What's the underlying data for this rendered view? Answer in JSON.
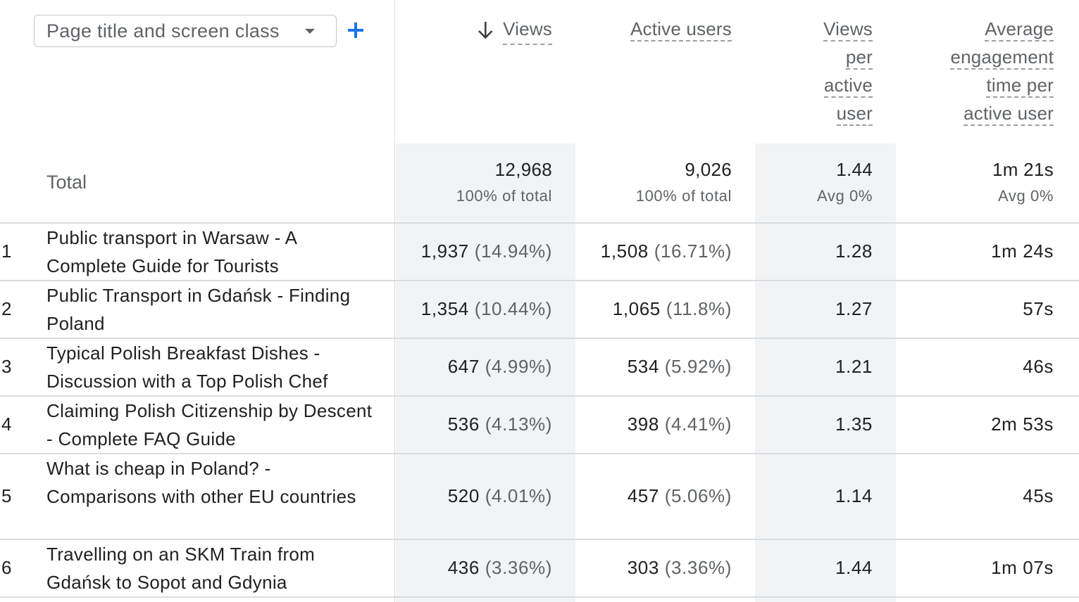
{
  "dimension": {
    "label": "Page title and screen class"
  },
  "columns": {
    "views": {
      "words": [
        "Views"
      ]
    },
    "active_users": {
      "words": [
        "Active users"
      ]
    },
    "views_per_user": {
      "words": [
        "Views",
        "per",
        "active",
        "user"
      ]
    },
    "avg_engagement": {
      "words": [
        "Average",
        "engagement",
        "time per",
        "active user"
      ]
    }
  },
  "totals": {
    "label": "Total",
    "views": "12,968",
    "views_sub": "100% of total",
    "active_users": "9,026",
    "active_users_sub": "100% of total",
    "views_per_user": "1.44",
    "views_per_user_sub": "Avg 0%",
    "avg_engagement": "1m 21s",
    "avg_engagement_sub": "Avg 0%"
  },
  "rows": [
    {
      "num": "1",
      "title": "Public transport in Warsaw - A Complete Guide for Tourists",
      "views": "1,937",
      "views_pct": "(14.94%)",
      "users": "1,508",
      "users_pct": "(16.71%)",
      "vpu": "1.28",
      "eng": "1m 24s"
    },
    {
      "num": "2",
      "title": "Public Transport in Gdańsk - Finding Poland",
      "views": "1,354",
      "views_pct": "(10.44%)",
      "users": "1,065",
      "users_pct": "(11.8%)",
      "vpu": "1.27",
      "eng": "57s"
    },
    {
      "num": "3",
      "title": "Typical Polish Breakfast Dishes - Discussion with a Top Polish Chef",
      "views": "647",
      "views_pct": "(4.99%)",
      "users": "534",
      "users_pct": "(5.92%)",
      "vpu": "1.21",
      "eng": "46s"
    },
    {
      "num": "4",
      "title": "Claiming Polish Citizenship by Descent - Complete FAQ Guide",
      "views": "536",
      "views_pct": "(4.13%)",
      "users": "398",
      "users_pct": "(4.41%)",
      "vpu": "1.35",
      "eng": "2m 53s"
    },
    {
      "num": "5",
      "title": "What is cheap in Poland? - Comparisons with other EU countries",
      "views": "520",
      "views_pct": "(4.01%)",
      "users": "457",
      "users_pct": "(5.06%)",
      "vpu": "1.14",
      "eng": "45s"
    },
    {
      "num": "6",
      "title": "Travelling on an SKM Train from Gdańsk to Sopot and Gdynia",
      "views": "436",
      "views_pct": "(3.36%)",
      "users": "303",
      "users_pct": "(3.36%)",
      "vpu": "1.44",
      "eng": "1m 07s"
    }
  ]
}
